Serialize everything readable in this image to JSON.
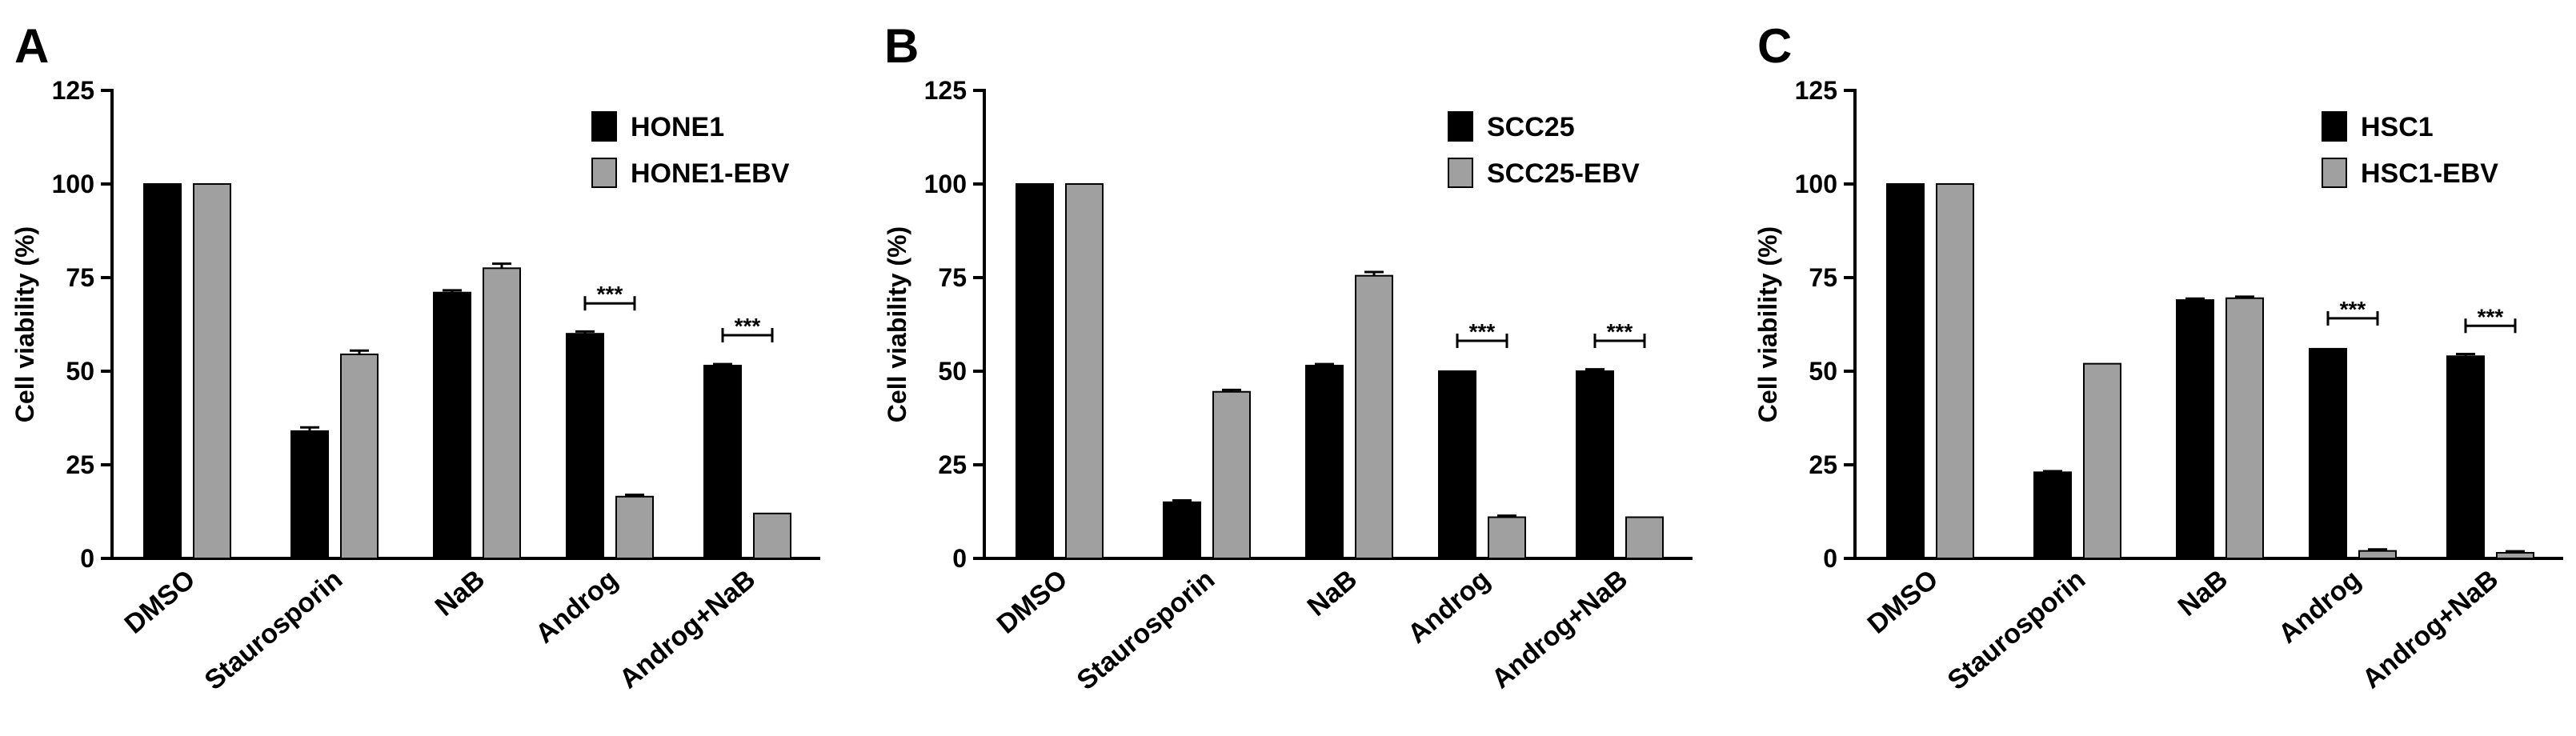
{
  "chart_data": [
    {
      "panel_label": "A",
      "type": "bar",
      "ylabel": "Cell viability (%)",
      "xlabel": "",
      "ylim": [
        0,
        125
      ],
      "yticks": [
        "0",
        "25",
        "50",
        "75",
        "100",
        "125"
      ],
      "categories": [
        "DMSO",
        "Staurosporin",
        "NaB",
        "Androg",
        "Androg+NaB"
      ],
      "legend_position": "top-right",
      "series": [
        {
          "name": "HONE1",
          "color": "#000000",
          "values": [
            100,
            34,
            71,
            60,
            51.5
          ],
          "errors": [
            0,
            1,
            0.6,
            0.6,
            0.4
          ]
        },
        {
          "name": "HONE1-EBV",
          "color": "#a0a0a0",
          "values": [
            100,
            54.5,
            77.5,
            16.5,
            12
          ],
          "errors": [
            0,
            1,
            1.2,
            0.5,
            0
          ]
        }
      ],
      "significance": [
        {
          "category": "Androg",
          "label": "***"
        },
        {
          "category": "Androg+NaB",
          "label": "***"
        }
      ]
    },
    {
      "panel_label": "B",
      "type": "bar",
      "ylabel": "Cell viability (%)",
      "xlabel": "",
      "ylim": [
        0,
        125
      ],
      "yticks": [
        "0",
        "25",
        "50",
        "75",
        "100",
        "125"
      ],
      "categories": [
        "DMSO",
        "Staurosporin",
        "NaB",
        "Androg",
        "Androg+NaB"
      ],
      "legend_position": "top-right",
      "series": [
        {
          "name": "SCC25",
          "color": "#000000",
          "values": [
            100,
            15,
            51.5,
            50,
            50
          ],
          "errors": [
            0,
            0.5,
            0.4,
            0,
            0.5
          ]
        },
        {
          "name": "SCC25-EBV",
          "color": "#a0a0a0",
          "values": [
            100,
            44.5,
            75.5,
            11,
            11
          ],
          "errors": [
            0,
            0.5,
            1,
            0.4,
            0
          ]
        }
      ],
      "significance": [
        {
          "category": "Androg",
          "label": "***"
        },
        {
          "category": "Androg+NaB",
          "label": "***"
        }
      ]
    },
    {
      "panel_label": "C",
      "type": "bar",
      "ylabel": "Cell viability (%)",
      "xlabel": "",
      "ylim": [
        0,
        125
      ],
      "yticks": [
        "0",
        "25",
        "50",
        "75",
        "100",
        "125"
      ],
      "categories": [
        "DMSO",
        "Staurosporin",
        "NaB",
        "Androg",
        "Androg+NaB"
      ],
      "legend_position": "top-right",
      "series": [
        {
          "name": "HSC1",
          "color": "#000000",
          "values": [
            100,
            23,
            69,
            56,
            54
          ],
          "errors": [
            0,
            0.3,
            0.4,
            0,
            0.6
          ]
        },
        {
          "name": "HSC1-EBV",
          "color": "#a0a0a0",
          "values": [
            100,
            52,
            69.5,
            2,
            1.5
          ],
          "errors": [
            0,
            0,
            0.4,
            0.4,
            0.4
          ]
        }
      ],
      "significance": [
        {
          "category": "Androg",
          "label": "***"
        },
        {
          "category": "Androg+NaB",
          "label": "***"
        }
      ]
    }
  ]
}
